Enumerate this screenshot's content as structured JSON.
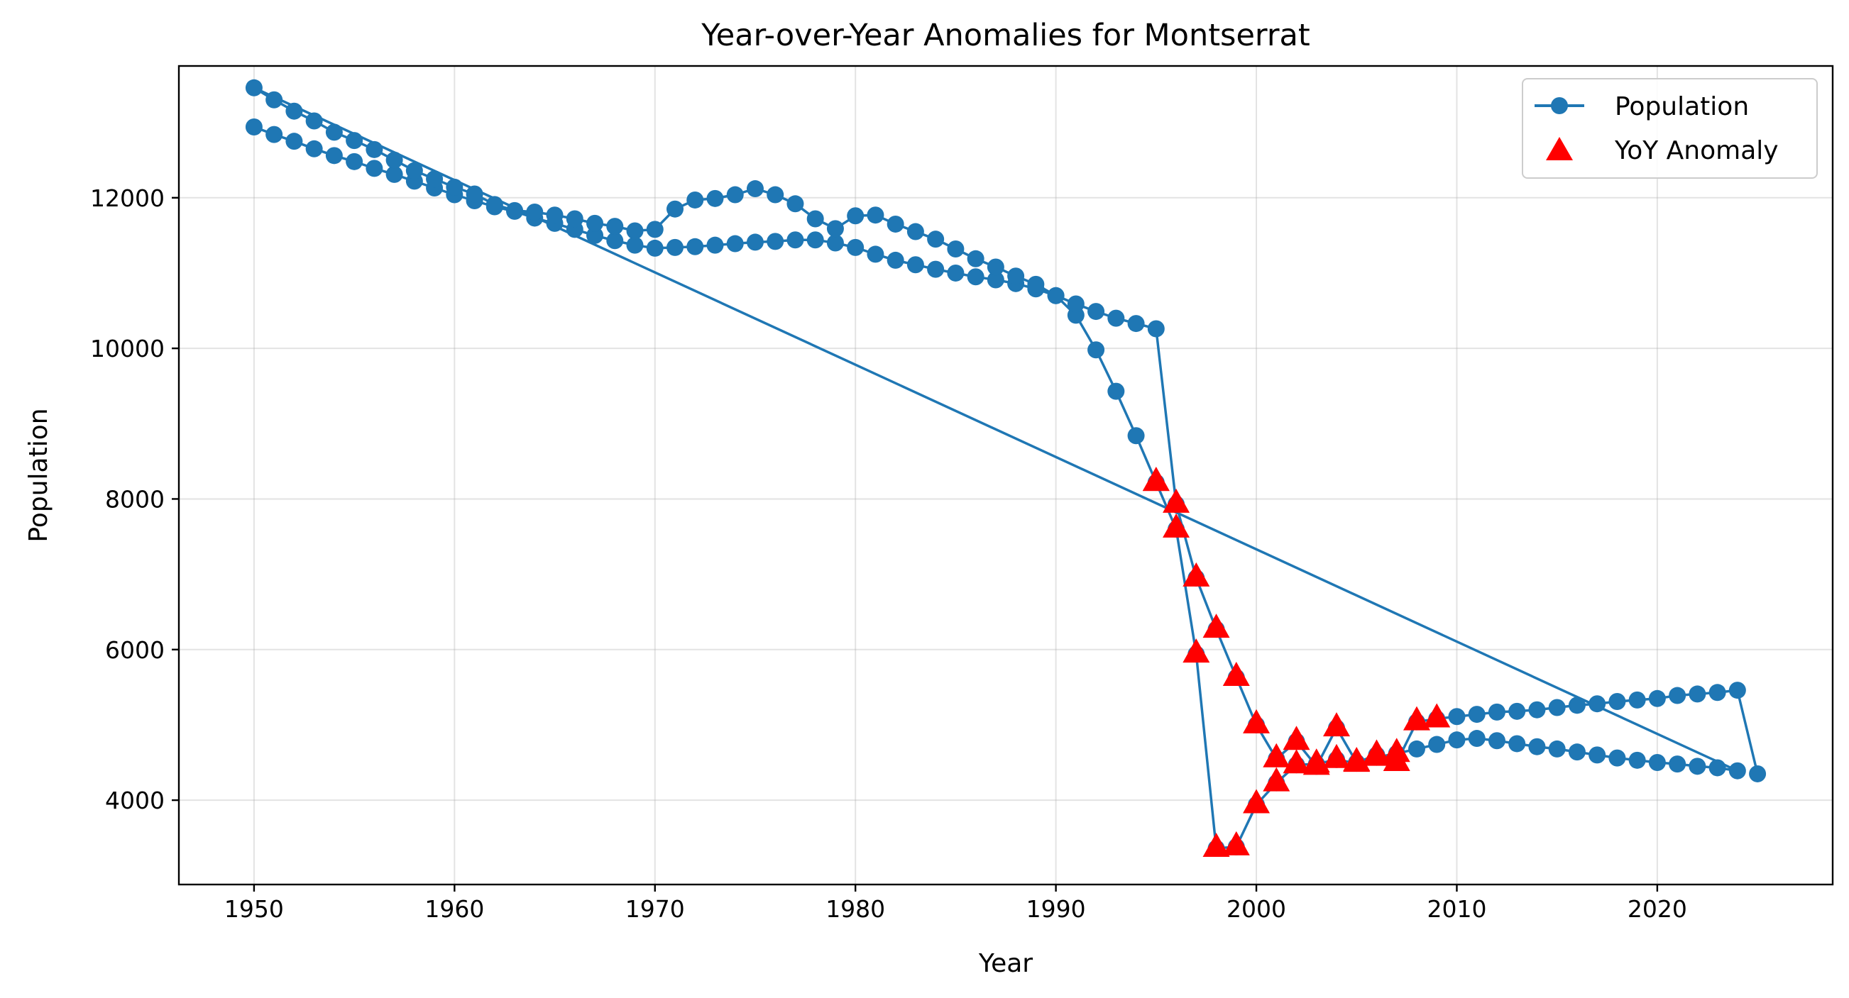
{
  "chart_data": {
    "type": "line",
    "title": "Year-over-Year Anomalies for Montserrat",
    "xlabel": "Year",
    "ylabel": "Population",
    "xlim": [
      1946.25,
      2028.75
    ],
    "ylim": [
      2880,
      13750
    ],
    "xticks": [
      1950,
      1960,
      1970,
      1980,
      1990,
      2000,
      2010,
      2020
    ],
    "yticks": [
      4000,
      6000,
      8000,
      10000,
      12000
    ],
    "grid": true,
    "legend_position": "top-right",
    "series": [
      {
        "name": "Population",
        "kind": "line-with-markers",
        "color": "#1f77b4",
        "x": [
          1950,
          1951,
          1952,
          1953,
          1954,
          1955,
          1956,
          1957,
          1958,
          1959,
          1960,
          1961,
          1962,
          1963,
          1964,
          1965,
          1966,
          1967,
          1968,
          1969,
          1970,
          1971,
          1972,
          1973,
          1974,
          1975,
          1976,
          1977,
          1978,
          1979,
          1980,
          1981,
          1982,
          1983,
          1984,
          1985,
          1986,
          1987,
          1988,
          1989,
          1990,
          1991,
          1992,
          1993,
          1994,
          1995,
          1996,
          1997,
          1998,
          1999,
          2000,
          2001,
          2002,
          2003,
          2004,
          2005,
          2006,
          2007,
          2008,
          2009,
          2010,
          2011,
          2012,
          2013,
          2014,
          2015,
          2016,
          2017,
          2018,
          2019,
          2020,
          2021,
          2022,
          2023,
          2024,
          1950,
          1951,
          1952,
          1953,
          1954,
          1955,
          1956,
          1957,
          1958,
          1959,
          1960,
          1961,
          1962,
          1963,
          1964,
          1965,
          1966,
          1967,
          1968,
          1969,
          1970,
          1971,
          1972,
          1973,
          1974,
          1975,
          1976,
          1977,
          1978,
          1979,
          1980,
          1981,
          1982,
          1983,
          1984,
          1985,
          1986,
          1987,
          1988,
          1989,
          1990,
          1991,
          1992,
          1993,
          1994,
          1995,
          1996,
          1997,
          1998,
          1999,
          2000,
          2001,
          2002,
          2003,
          2004,
          2005,
          2006,
          2007,
          2008,
          2009,
          2010,
          2011,
          2012,
          2013,
          2014,
          2015,
          2016,
          2017,
          2018,
          2019,
          2020,
          2021,
          2022,
          2023,
          2024,
          2025
        ],
        "y": [
          12940,
          12840,
          12750,
          12650,
          12560,
          12480,
          12390,
          12310,
          12220,
          12130,
          12040,
          11960,
          11880,
          11820,
          11730,
          11660,
          11580,
          11500,
          11430,
          11370,
          11330,
          11340,
          11350,
          11370,
          11390,
          11410,
          11420,
          11440,
          11440,
          11400,
          11340,
          11250,
          11170,
          11110,
          11050,
          11000,
          10950,
          10910,
          10860,
          10790,
          10700,
          10440,
          9980,
          9430,
          8840,
          8220,
          7600,
          5940,
          3360,
          3380,
          3940,
          4230,
          4470,
          4480,
          4540,
          4490,
          4570,
          4620,
          4680,
          4740,
          4800,
          4820,
          4790,
          4750,
          4710,
          4680,
          4640,
          4600,
          4560,
          4530,
          4500,
          4480,
          4450,
          4430,
          4390,
          13460,
          13300,
          13150,
          13020,
          12870,
          12760,
          12640,
          12500,
          12360,
          12250,
          12140,
          12050,
          11910,
          11830,
          11810,
          11770,
          11720,
          11660,
          11620,
          11560,
          11580,
          11850,
          11970,
          11990,
          12040,
          12120,
          12040,
          11920,
          11720,
          11590,
          11760,
          11770,
          11650,
          11550,
          11450,
          11320,
          11190,
          11080,
          10960,
          10850,
          10700,
          10590,
          10490,
          10400,
          10330,
          10260,
          7930,
          6950,
          6270,
          5630,
          5000,
          4550,
          4780,
          4450,
          4960,
          4500,
          4600,
          4500,
          5040,
          5080,
          5110,
          5140,
          5170,
          5180,
          5200,
          5230,
          5260,
          5280,
          5310,
          5330,
          5350,
          5390,
          5410,
          5430,
          5460,
          4350
        ]
      },
      {
        "name": "YoY Anomaly",
        "kind": "markers",
        "marker": "triangle",
        "color": "#ff0000",
        "x": [
          1995,
          1996,
          1997,
          1998,
          1999,
          2000,
          2001,
          2002,
          2003,
          2004,
          2005,
          2006,
          2007,
          2008,
          2009,
          1995,
          1996,
          1997,
          1998,
          1999,
          2000,
          2001,
          2002,
          2003,
          2004,
          2005,
          2006,
          2007
        ],
        "y": [
          8220,
          7600,
          5940,
          3360,
          3380,
          3940,
          4230,
          4470,
          4480,
          4540,
          4490,
          4570,
          4620,
          5040,
          5080,
          8220,
          7930,
          6950,
          6270,
          5630,
          5000,
          4550,
          4780,
          4450,
          4960,
          4500,
          4600,
          4500
        ]
      }
    ]
  }
}
